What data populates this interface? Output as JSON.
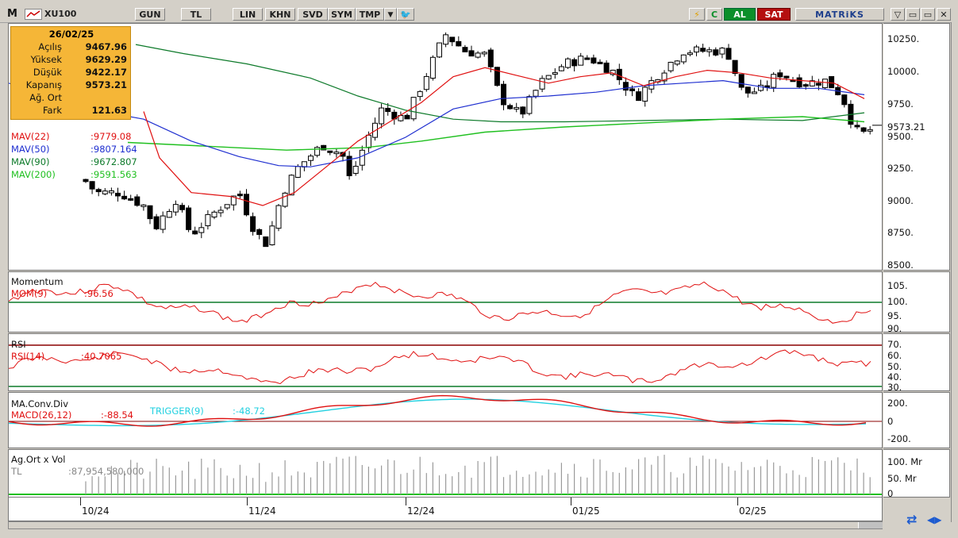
{
  "toolbar": {
    "logo": "M",
    "symbol": "XU100",
    "buttons": [
      "GUN",
      "TL",
      "LIN",
      "KHN",
      "SVD",
      "SYM",
      "TMP"
    ],
    "lightning_icon": "⚡",
    "refresh_icon": "C",
    "buy_label": "AL",
    "sell_label": "SAT",
    "brand": "MATRiKS",
    "window_controls": [
      "▽",
      "▭",
      "▭",
      "✕"
    ]
  },
  "info": {
    "date": "26/02/25",
    "rows": [
      {
        "label": "Açılış",
        "value": "9467.96"
      },
      {
        "label": "Yüksek",
        "value": "9629.29"
      },
      {
        "label": "Düşük",
        "value": "9422.17"
      },
      {
        "label": "Kapanış",
        "value": "9573.21"
      },
      {
        "label": "Ağ. Ort",
        "value": ""
      },
      {
        "label": "Fark",
        "value": "121.63"
      }
    ]
  },
  "price_panel": {
    "legend": [
      {
        "name": "MAV(22)",
        "value": ":9779.08",
        "color": "#e01010"
      },
      {
        "name": "MAV(50)",
        "value": ":9807.164",
        "color": "#1f2fd0"
      },
      {
        "name": "MAV(90)",
        "value": ":9672.807",
        "color": "#0d7a2a"
      },
      {
        "name": "MAV(200)",
        "value": ":9591.563",
        "color": "#20c020"
      }
    ],
    "axis_labels": [
      "10250.",
      "10000.",
      "9750.",
      "9573.21",
      "9500.",
      "9250.",
      "9000.",
      "8750.",
      "8500."
    ],
    "last_price": "9573.21"
  },
  "momentum_panel": {
    "title": "Momentum",
    "name": "MOM(9)",
    "value": ":96.56",
    "axis_labels": [
      "105.",
      "100.",
      "95.",
      "90."
    ]
  },
  "rsi_panel": {
    "title": "RSI",
    "name": "RSI(14)",
    "value": ":40.7065",
    "axis_labels": [
      "70.",
      "60.",
      "50.",
      "40.",
      "30."
    ]
  },
  "macd_panel": {
    "title": "MA.Conv.Div",
    "name": "MACD(26,12)",
    "value": ":-88.54",
    "trigger_name": "TRIGGER(9)",
    "trigger_value": ":-48.72",
    "axis_labels": [
      "200.",
      "0",
      "-200."
    ]
  },
  "volume_panel": {
    "title": "Ag.Ort x Vol",
    "name": "TL",
    "value": ":87,954,580,000",
    "axis_labels": [
      "100. Mr",
      "50. Mr",
      "0"
    ]
  },
  "x_axis": [
    "10/24",
    "11/24",
    "12/24",
    "01/25",
    "02/25"
  ],
  "colors": {
    "up": "#ffffff",
    "down": "#000000",
    "mav22": "#e01010",
    "mav50": "#1f2fd0",
    "mav90": "#0d7a2a",
    "mav200": "#20c020",
    "al": "#0b8f2a",
    "sat": "#b50f0f"
  }
}
